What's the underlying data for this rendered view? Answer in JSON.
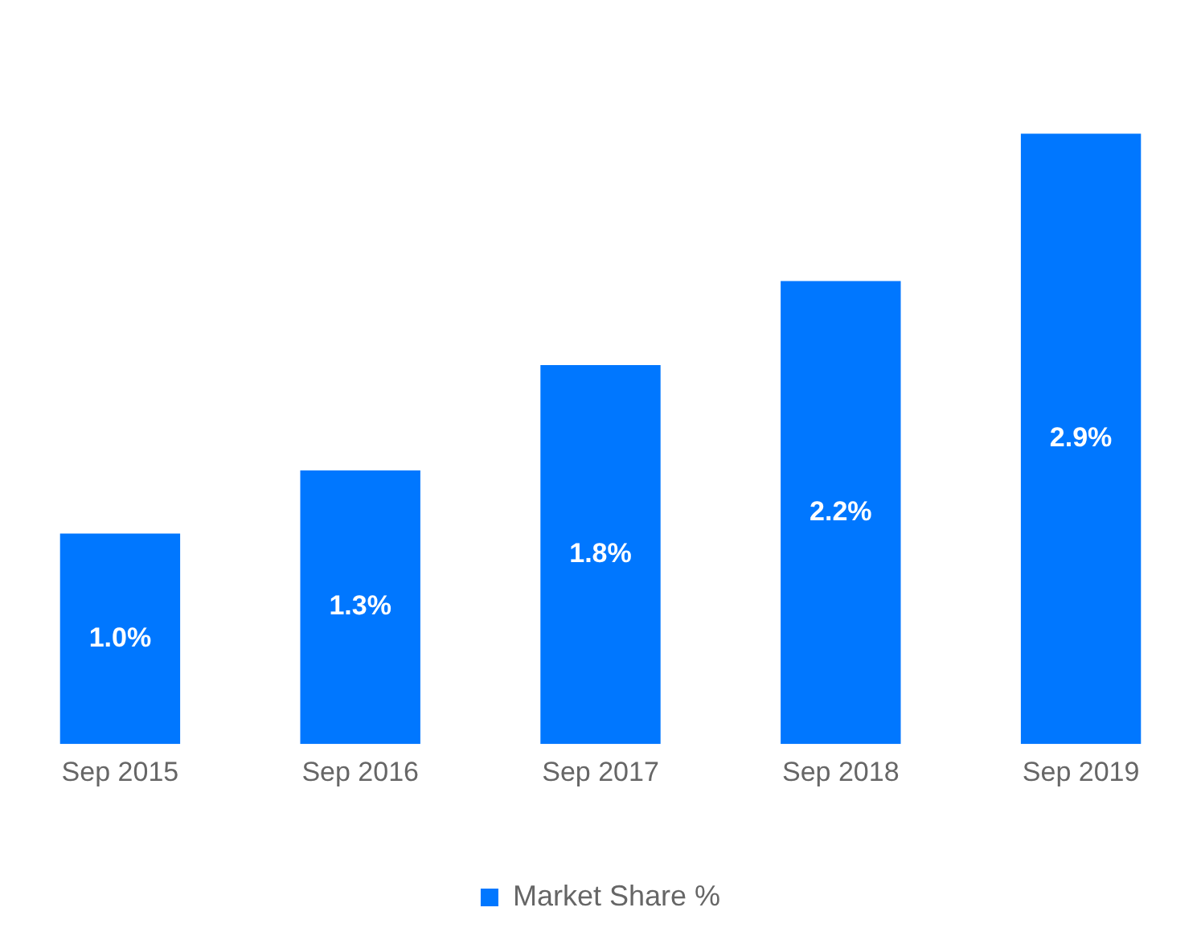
{
  "chart_data": {
    "type": "bar",
    "categories": [
      "Sep 2015",
      "Sep 2016",
      "Sep 2017",
      "Sep 2018",
      "Sep 2019"
    ],
    "series": [
      {
        "name": "Market Share %",
        "color": "#0077ff",
        "values": [
          1.0,
          1.3,
          1.8,
          2.2,
          2.9
        ],
        "value_labels": [
          "1.0%",
          "1.3%",
          "1.8%",
          "2.2%",
          "2.9%"
        ]
      }
    ],
    "legend": "bottom",
    "grid": false,
    "tick_labels": "x"
  }
}
